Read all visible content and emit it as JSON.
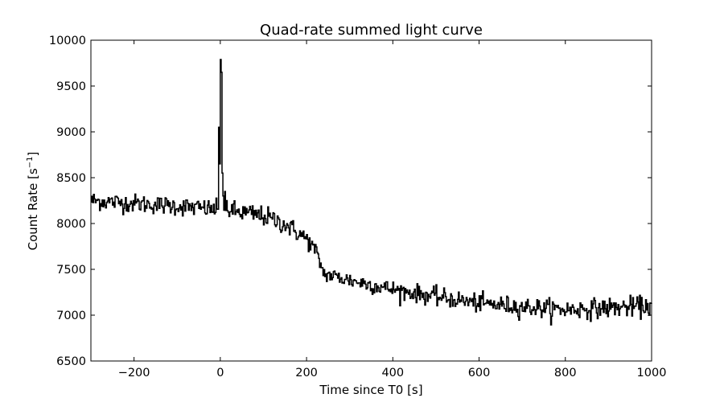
{
  "chart_data": {
    "type": "line",
    "title": "Quad-rate summed light curve",
    "xlabel": "Time since T0 [s]",
    "ylabel_main": "Count Rate [s",
    "ylabel_sup": "−1",
    "ylabel_close": "]",
    "xlim": [
      -300,
      1000
    ],
    "ylim": [
      6500,
      10000
    ],
    "xticks": [
      -200,
      0,
      200,
      400,
      600,
      800,
      1000
    ],
    "xtick_labels": [
      "−200",
      "0",
      "200",
      "400",
      "600",
      "800",
      "1000"
    ],
    "yticks": [
      6500,
      7000,
      7500,
      8000,
      8500,
      9000,
      9500,
      10000
    ],
    "ytick_labels": [
      "6500",
      "7000",
      "7500",
      "8000",
      "8500",
      "9000",
      "9500",
      "10000"
    ],
    "grid": false,
    "line_color": "#000000",
    "step": 2,
    "series": [
      {
        "x_start": -300,
        "x_end": 1000,
        "baseline": [
          [
            -300,
            8250
          ],
          [
            -100,
            8190
          ],
          [
            -5,
            8150
          ],
          [
            0,
            8150
          ],
          [
            50,
            8120
          ],
          [
            100,
            8080
          ],
          [
            150,
            7990
          ],
          [
            200,
            7830
          ],
          [
            220,
            7700
          ],
          [
            240,
            7450
          ],
          [
            300,
            7380
          ],
          [
            400,
            7280
          ],
          [
            500,
            7200
          ],
          [
            600,
            7130
          ],
          [
            700,
            7090
          ],
          [
            800,
            7060
          ],
          [
            900,
            7080
          ],
          [
            1000,
            7100
          ]
        ],
        "noise": [
          [
            -300,
            50
          ],
          [
            -10,
            50
          ],
          [
            -5,
            0
          ],
          [
            15,
            0
          ],
          [
            20,
            55
          ],
          [
            140,
            55
          ],
          [
            240,
            45
          ],
          [
            1000,
            55
          ]
        ],
        "spikes": [
          [
            -4,
            9050
          ],
          [
            -2,
            8650
          ],
          [
            0,
            9790
          ],
          [
            2,
            9650
          ],
          [
            4,
            8550
          ],
          [
            6,
            8300
          ],
          [
            10,
            8350
          ],
          [
            14,
            8250
          ]
        ]
      }
    ]
  }
}
